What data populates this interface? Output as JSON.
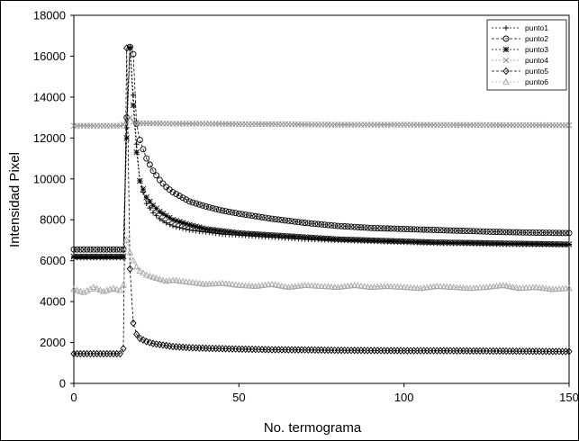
{
  "chart_data": {
    "type": "line",
    "xlabel": "No. termograma",
    "ylabel": "Intensidad Pixel",
    "xlim": [
      0,
      150
    ],
    "ylim": [
      0,
      18000
    ],
    "xticks": [
      "0",
      "50",
      "100",
      "150"
    ],
    "yticks": [
      "0",
      "2000",
      "4000",
      "6000",
      "8000",
      "10000",
      "12000",
      "14000",
      "16000",
      "18000"
    ],
    "grid": false,
    "legend_position": "top-right",
    "series": [
      {
        "name": "punto1",
        "color": "#000000",
        "dash": "2,2",
        "marker": "plus",
        "x": [
          0,
          15,
          16,
          17,
          18,
          19,
          20,
          22,
          24,
          26,
          28,
          30,
          35,
          40,
          45,
          50,
          60,
          70,
          80,
          90,
          100,
          110,
          120,
          130,
          140,
          150
        ],
        "y": [
          6150,
          6150,
          12500,
          16450,
          14100,
          11700,
          9900,
          8800,
          8350,
          8050,
          7850,
          7700,
          7500,
          7400,
          7300,
          7250,
          7150,
          7050,
          7000,
          6950,
          6900,
          6850,
          6830,
          6800,
          6790,
          6780
        ]
      },
      {
        "name": "punto2",
        "color": "#000000",
        "dash": "3,2",
        "marker": "circle",
        "x": [
          0,
          15,
          16,
          17,
          18,
          19,
          20,
          22,
          24,
          26,
          28,
          30,
          35,
          40,
          45,
          50,
          60,
          70,
          80,
          90,
          100,
          110,
          120,
          130,
          140,
          150
        ],
        "y": [
          6550,
          6550,
          13000,
          16450,
          16100,
          12700,
          11900,
          11000,
          10400,
          9950,
          9600,
          9350,
          8900,
          8650,
          8450,
          8300,
          8050,
          7850,
          7700,
          7600,
          7550,
          7500,
          7450,
          7400,
          7370,
          7350
        ]
      },
      {
        "name": "punto3",
        "color": "#000000",
        "dash": "2,2",
        "marker": "star",
        "x": [
          0,
          15,
          16,
          17,
          18,
          19,
          20,
          22,
          24,
          26,
          28,
          30,
          35,
          40,
          45,
          50,
          60,
          70,
          80,
          90,
          100,
          110,
          120,
          130,
          140,
          150
        ],
        "y": [
          6200,
          6200,
          12000,
          16400,
          13600,
          11300,
          9900,
          9100,
          8700,
          8400,
          8200,
          8000,
          7750,
          7550,
          7450,
          7350,
          7250,
          7150,
          7050,
          7000,
          6950,
          6900,
          6880,
          6850,
          6830,
          6800
        ]
      },
      {
        "name": "punto4",
        "color": "#8c8c8c",
        "dash": "2,2",
        "marker": "x",
        "x": [
          0,
          14,
          15,
          16,
          17,
          18,
          19,
          20,
          30,
          40,
          50,
          60,
          70,
          80,
          90,
          100,
          110,
          120,
          130,
          140,
          150
        ],
        "y": [
          12600,
          12600,
          12650,
          12900,
          13000,
          12800,
          12750,
          12720,
          12700,
          12700,
          12680,
          12680,
          12660,
          12650,
          12650,
          12650,
          12640,
          12640,
          12630,
          12630,
          12620
        ]
      },
      {
        "name": "punto5",
        "color": "#000000",
        "dash": "3,2",
        "marker": "diamond",
        "x": [
          0,
          14,
          15,
          16,
          17,
          18,
          19,
          20,
          22,
          24,
          26,
          28,
          30,
          35,
          40,
          50,
          60,
          70,
          80,
          90,
          100,
          110,
          120,
          130,
          140,
          150
        ],
        "y": [
          1450,
          1450,
          1700,
          16400,
          5600,
          2950,
          2400,
          2200,
          2050,
          1950,
          1900,
          1850,
          1800,
          1750,
          1720,
          1680,
          1650,
          1640,
          1620,
          1610,
          1600,
          1600,
          1590,
          1580,
          1570,
          1560
        ]
      },
      {
        "name": "punto6",
        "color": "#a6a6a6",
        "dash": "2,2",
        "marker": "triangle",
        "x": [
          0,
          3,
          6,
          9,
          12,
          14,
          15,
          16,
          17,
          18,
          19,
          20,
          22,
          24,
          26,
          28,
          30,
          35,
          40,
          45,
          50,
          55,
          60,
          65,
          70,
          75,
          80,
          85,
          90,
          95,
          100,
          105,
          110,
          115,
          120,
          125,
          130,
          135,
          140,
          145,
          150
        ],
        "y": [
          4600,
          4450,
          4700,
          4500,
          4650,
          4550,
          4800,
          7000,
          6400,
          6000,
          5700,
          5500,
          5300,
          5200,
          5100,
          5000,
          5050,
          4950,
          4850,
          4900,
          4800,
          4750,
          4850,
          4700,
          4800,
          4750,
          4700,
          4800,
          4700,
          4750,
          4700,
          4650,
          4750,
          4700,
          4650,
          4700,
          4800,
          4650,
          4700,
          4600,
          4650
        ]
      }
    ]
  }
}
